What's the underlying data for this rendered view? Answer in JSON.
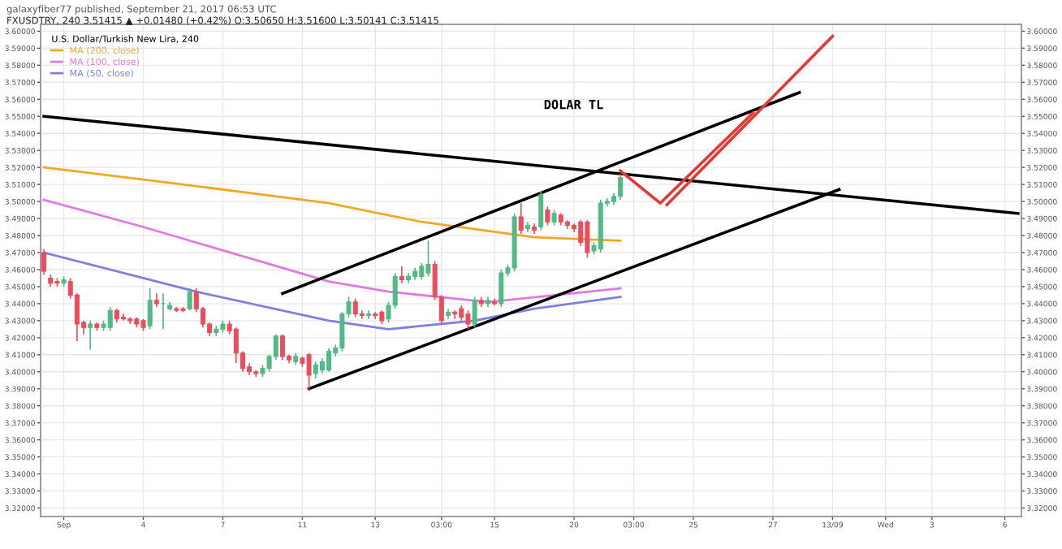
{
  "chart_data": {
    "type": "candlestick",
    "title": "galaxyfiber77 published, September 21, 2017 06:53 UTC",
    "subtitle": "FXUSDTRY, 240 3.51415 ▲ +0.01480 (+0.42%) O:3.50650 H:3.51600 L:3.50141 C:3.51415",
    "legend_title": "U.S. Dollar/Turkish New Lira, 240",
    "legend": "top left",
    "annotations": [
      "DOLAR TL"
    ],
    "colors": [
      "#eb4d5c",
      "#eb4d5c",
      "#eb4d5c",
      "#53b987",
      "#eb4d5c",
      "#eb4d5c",
      "#eb4d5c",
      "#53b987",
      "#eb4d5c",
      "#53b987",
      "#53b987",
      "#eb4d5c",
      "#eb4d5c",
      "#eb4d5c",
      "#eb4d5c",
      "#eb4d5c",
      "#53b987",
      "#eb4d5c",
      "#53b987",
      "#53b987",
      "#eb4d5c",
      "#eb4d5c",
      "#53b987",
      "#eb4d5c",
      "#eb4d5c",
      "#eb4d5c",
      "#53b987",
      "#53b987",
      "#eb4d5c",
      "#eb4d5c",
      "#eb4d5c",
      "#eb4d5c",
      "#eb4d5c",
      "#53b987",
      "#53b987",
      "#53b987",
      "#eb4d5c",
      "#eb4d5c",
      "#53b987",
      "#eb4d5c",
      "#eb4d5c",
      "#53b987",
      "#53b987",
      "#53b987",
      "#53b987",
      "#53b987",
      "#53b987",
      "#eb4d5c",
      "#eb4d5c",
      "#53b987",
      "#eb4d5c",
      "#eb4d5c",
      "#53b987",
      "#53b987",
      "#eb4d5c",
      "#53b987",
      "#53b987",
      "#53b987",
      "#53b987",
      "#eb4d5c",
      "#eb4d5c",
      "#53b987",
      "#eb4d5c",
      "#eb4d5c",
      "#eb4d5c",
      "#53b987",
      "#eb4d5c",
      "#53b987",
      "#eb4d5c",
      "#53b987",
      "#53b987",
      "#53b987",
      "#eb4d5c",
      "#53b987",
      "#eb4d5c",
      "#53b987",
      "#eb4d5c",
      "#53b987",
      "#eb4d5c",
      "#eb4d5c",
      "#eb4d5c",
      "#eb4d5c",
      "#eb4d5c",
      "#53b987",
      "#53b987",
      "#53b987",
      "#53b987",
      "#53b987",
      null,
      null,
      null,
      null,
      null,
      null,
      null,
      null,
      null,
      null,
      null,
      null,
      null,
      null,
      null,
      null,
      null,
      null,
      null,
      null,
      null,
      null,
      null,
      null,
      null,
      null,
      null,
      null,
      null,
      null,
      null,
      null,
      null,
      null,
      null,
      null,
      null,
      null,
      null,
      null,
      null,
      null,
      null,
      null,
      null,
      null,
      null,
      null,
      null,
      null,
      null,
      null,
      null,
      null,
      null,
      null,
      null,
      null,
      null,
      null
    ],
    "categories": [
      null,
      null,
      null,
      "Sep",
      null,
      null,
      null,
      null,
      null,
      null,
      null,
      null,
      null,
      null,
      null,
      "4",
      null,
      null,
      null,
      null,
      null,
      null,
      null,
      null,
      null,
      null,
      null,
      "7",
      null,
      null,
      null,
      null,
      null,
      null,
      null,
      null,
      null,
      null,
      null,
      "11",
      null,
      null,
      null,
      null,
      null,
      null,
      null,
      null,
      null,
      null,
      "13",
      null,
      null,
      null,
      null,
      null,
      null,
      null,
      null,
      null,
      "03:00",
      null,
      null,
      null,
      null,
      null,
      null,
      null,
      "15",
      null,
      null,
      null,
      null,
      null,
      null,
      null,
      null,
      null,
      null,
      null,
      "20",
      null,
      null,
      null,
      null,
      null,
      null,
      null,
      null,
      "03:00",
      null,
      null,
      null,
      null,
      null,
      null,
      null,
      null,
      "25",
      null,
      null,
      null,
      null,
      null,
      null,
      null,
      null,
      null,
      null,
      null,
      "27",
      null,
      null,
      null,
      null,
      null,
      null,
      null,
      null,
      "13/09",
      null,
      null,
      null,
      null,
      null,
      null,
      null,
      "Wed",
      null,
      null,
      null,
      null,
      null,
      null,
      "3",
      null,
      null,
      null,
      null,
      null,
      null,
      null,
      null,
      null,
      null,
      "6",
      null,
      null
    ],
    "ohlc": [
      [
        3.47,
        3.472,
        3.457,
        3.459
      ],
      [
        3.455,
        3.457,
        3.45,
        3.452
      ],
      [
        3.453,
        3.455,
        3.45,
        3.452
      ],
      [
        3.452,
        3.456,
        3.45,
        3.454
      ],
      [
        3.453,
        3.455,
        3.443,
        3.445
      ],
      [
        3.445,
        3.446,
        3.418,
        3.428
      ],
      [
        3.429,
        3.43,
        3.422,
        3.426
      ],
      [
        3.426,
        3.43,
        3.413,
        3.428
      ],
      [
        3.428,
        3.429,
        3.424,
        3.426
      ],
      [
        3.426,
        3.43,
        3.424,
        3.428
      ],
      [
        3.426,
        3.438,
        3.424,
        3.436
      ],
      [
        3.436,
        3.437,
        3.429,
        3.431
      ],
      [
        3.432,
        3.434,
        3.43,
        3.431
      ],
      [
        3.431,
        3.432,
        3.428,
        3.43
      ],
      [
        3.431,
        3.432,
        3.426,
        3.428
      ],
      [
        3.43,
        3.431,
        3.424,
        3.426
      ],
      [
        3.427,
        3.449,
        3.425,
        3.442
      ],
      [
        3.442,
        3.446,
        3.438,
        3.44
      ],
      [
        3.44,
        3.446,
        3.425,
        3.44
      ],
      [
        3.437,
        3.441,
        3.436,
        3.439
      ],
      [
        3.437,
        3.438,
        3.435,
        3.436
      ],
      [
        3.437,
        3.438,
        3.435,
        3.436
      ],
      [
        3.437,
        3.449,
        3.436,
        3.447
      ],
      [
        3.447,
        3.449,
        3.435,
        3.437
      ],
      [
        3.437,
        3.438,
        3.426,
        3.428
      ],
      [
        3.428,
        3.429,
        3.421,
        3.423
      ],
      [
        3.423,
        3.427,
        3.421,
        3.425
      ],
      [
        3.425,
        3.43,
        3.423,
        3.428
      ],
      [
        3.428,
        3.43,
        3.422,
        3.424
      ],
      [
        3.425,
        3.426,
        3.405,
        3.411
      ],
      [
        3.411,
        3.412,
        3.4,
        3.402
      ],
      [
        3.403,
        3.405,
        3.398,
        3.4
      ],
      [
        3.4,
        3.401,
        3.397,
        3.399
      ],
      [
        3.399,
        3.404,
        3.397,
        3.402
      ],
      [
        3.402,
        3.41,
        3.4,
        3.409
      ],
      [
        3.409,
        3.422,
        3.407,
        3.421
      ],
      [
        3.421,
        3.422,
        3.407,
        3.409
      ],
      [
        3.409,
        3.41,
        3.405,
        3.407
      ],
      [
        3.406,
        3.411,
        3.404,
        3.409
      ],
      [
        3.408,
        3.409,
        3.403,
        3.405
      ],
      [
        3.41,
        3.411,
        3.389,
        3.398
      ],
      [
        3.399,
        3.406,
        3.396,
        3.404
      ],
      [
        3.401,
        3.408,
        3.399,
        3.406
      ],
      [
        3.401,
        3.414,
        3.4,
        3.412
      ],
      [
        3.411,
        3.416,
        3.409,
        3.414
      ],
      [
        3.414,
        3.435,
        3.412,
        3.434
      ],
      [
        3.434,
        3.444,
        3.432,
        3.441
      ],
      [
        3.441,
        3.443,
        3.432,
        3.434
      ],
      [
        3.434,
        3.436,
        3.431,
        3.433
      ],
      [
        3.433,
        3.436,
        3.431,
        3.434
      ],
      [
        3.434,
        3.435,
        3.431,
        3.433
      ],
      [
        3.435,
        3.436,
        3.428,
        3.43
      ],
      [
        3.431,
        3.441,
        3.429,
        3.439
      ],
      [
        3.439,
        3.458,
        3.437,
        3.456
      ],
      [
        3.456,
        3.462,
        3.452,
        3.454
      ],
      [
        3.454,
        3.458,
        3.452,
        3.456
      ],
      [
        3.456,
        3.461,
        3.454,
        3.459
      ],
      [
        3.456,
        3.464,
        3.454,
        3.462
      ],
      [
        3.458,
        3.477,
        3.456,
        3.463
      ],
      [
        3.463,
        3.465,
        3.442,
        3.444
      ],
      [
        3.444,
        3.445,
        3.428,
        3.43
      ],
      [
        3.433,
        3.437,
        3.431,
        3.435
      ],
      [
        3.435,
        3.436,
        3.431,
        3.434
      ],
      [
        3.437,
        3.439,
        3.43,
        3.432
      ],
      [
        3.434,
        3.436,
        3.425,
        3.428
      ],
      [
        3.428,
        3.444,
        3.426,
        3.442
      ],
      [
        3.442,
        3.444,
        3.438,
        3.44
      ],
      [
        3.44,
        3.444,
        3.438,
        3.442
      ],
      [
        3.441,
        3.443,
        3.439,
        3.44
      ],
      [
        3.44,
        3.46,
        3.438,
        3.458
      ],
      [
        3.458,
        3.463,
        3.456,
        3.461
      ],
      [
        3.461,
        3.493,
        3.459,
        3.491
      ],
      [
        3.491,
        3.499,
        3.481,
        3.483
      ],
      [
        3.484,
        3.488,
        3.482,
        3.486
      ],
      [
        3.485,
        3.487,
        3.481,
        3.483
      ],
      [
        3.485,
        3.506,
        3.483,
        3.504
      ],
      [
        3.495,
        3.497,
        3.486,
        3.488
      ],
      [
        3.488,
        3.495,
        3.486,
        3.493
      ],
      [
        3.492,
        3.493,
        3.486,
        3.488
      ],
      [
        3.488,
        3.489,
        3.484,
        3.486
      ],
      [
        3.486,
        3.487,
        3.482,
        3.484
      ],
      [
        3.488,
        3.489,
        3.474,
        3.476
      ],
      [
        3.488,
        3.489,
        3.467,
        3.47
      ],
      [
        3.471,
        3.476,
        3.469,
        3.474
      ],
      [
        3.472,
        3.501,
        3.47,
        3.499
      ],
      [
        3.499,
        3.502,
        3.497,
        3.5
      ],
      [
        3.5,
        3.505,
        3.498,
        3.503
      ],
      [
        3.503,
        3.516,
        3.501,
        3.514
      ],
      null,
      null,
      null,
      null,
      null,
      null,
      null,
      null,
      null,
      null,
      null,
      null,
      null,
      null,
      null,
      null,
      null,
      null,
      null,
      null,
      null,
      null,
      null,
      null,
      null,
      null,
      null,
      null,
      null,
      null,
      null,
      null,
      null,
      null,
      null,
      null,
      null,
      null,
      null,
      null,
      null,
      null,
      null,
      null,
      null,
      null,
      null,
      null,
      null,
      null,
      null,
      null,
      null,
      null,
      null,
      null,
      null,
      null,
      null,
      null
    ],
    "series": [
      {
        "type": "line",
        "name": "MA (200, close)",
        "color": "#f5a623",
        "values": [
          3.52,
          null,
          null,
          null,
          null,
          null,
          null,
          null,
          null,
          null,
          null,
          null,
          null,
          null,
          null,
          null,
          null,
          null,
          null,
          3.511,
          null,
          null,
          null,
          null,
          null,
          null,
          null,
          null,
          null,
          null,
          null,
          null,
          null,
          null,
          null,
          null,
          null,
          null,
          null,
          null,
          null,
          null,
          null,
          3.499,
          null,
          null,
          null,
          null,
          null,
          null,
          null,
          null,
          null,
          null,
          null,
          null,
          null,
          3.488,
          null,
          null,
          null,
          null,
          null,
          null,
          null,
          null,
          null,
          null,
          null,
          null,
          null,
          null,
          null,
          null,
          3.479,
          null,
          null,
          null,
          null,
          null,
          null,
          null,
          null,
          null,
          null,
          null,
          null,
          3.477,
          null,
          null,
          null,
          null,
          null,
          null,
          null,
          null,
          null,
          null,
          null,
          null,
          null,
          null,
          null,
          null,
          null,
          null,
          null,
          null,
          null,
          null,
          null,
          null,
          null,
          null,
          null,
          null,
          null,
          null,
          null,
          null,
          null,
          null,
          null,
          null,
          null,
          null,
          null,
          null,
          null,
          null,
          null,
          null,
          null,
          null,
          null,
          null,
          null,
          null,
          null,
          null,
          null,
          null,
          null,
          null,
          null,
          null,
          null,
          null
        ]
      },
      {
        "type": "line",
        "name": "MA (100, close)",
        "color": "#e07ae0",
        "values": [
          3.501,
          null,
          null,
          null,
          null,
          null,
          null,
          null,
          null,
          null,
          null,
          null,
          null,
          null,
          null,
          3.485,
          null,
          null,
          null,
          null,
          null,
          null,
          null,
          null,
          null,
          null,
          null,
          null,
          null,
          null,
          null,
          null,
          null,
          null,
          null,
          null,
          null,
          null,
          null,
          null,
          null,
          null,
          null,
          3.453,
          null,
          null,
          null,
          null,
          null,
          null,
          null,
          null,
          3.447,
          null,
          null,
          null,
          null,
          null,
          null,
          null,
          null,
          null,
          null,
          null,
          null,
          null,
          null,
          3.441,
          null,
          null,
          null,
          null,
          null,
          null,
          null,
          null,
          null,
          null,
          null,
          null,
          null,
          null,
          null,
          null,
          null,
          null,
          null,
          3.449,
          null,
          null,
          null,
          null,
          null,
          null,
          null,
          null,
          null,
          null,
          null,
          null,
          null,
          null,
          null,
          null,
          null,
          null,
          null,
          null,
          null,
          null,
          null,
          null,
          null,
          null,
          null,
          null,
          null,
          null,
          null,
          null,
          null,
          null,
          null,
          null,
          null,
          null,
          null,
          null,
          null,
          null,
          null,
          null,
          null,
          null,
          null,
          null,
          null,
          null,
          null,
          null,
          null,
          null,
          null,
          null,
          null,
          null,
          null,
          null
        ]
      },
      {
        "type": "line",
        "name": "MA (50, close)",
        "color": "#7f7fe0",
        "values": [
          3.47,
          null,
          null,
          null,
          null,
          null,
          null,
          null,
          null,
          null,
          null,
          null,
          null,
          null,
          null,
          null,
          null,
          null,
          null,
          null,
          null,
          null,
          null,
          3.447,
          null,
          null,
          null,
          null,
          null,
          null,
          null,
          null,
          null,
          null,
          null,
          null,
          null,
          null,
          null,
          null,
          null,
          null,
          null,
          3.43,
          null,
          null,
          null,
          null,
          null,
          null,
          null,
          null,
          3.425,
          null,
          null,
          null,
          null,
          null,
          null,
          null,
          null,
          null,
          null,
          null,
          null,
          3.43,
          null,
          null,
          null,
          null,
          null,
          null,
          null,
          null,
          3.437,
          null,
          null,
          null,
          null,
          null,
          null,
          null,
          null,
          null,
          null,
          null,
          null,
          3.444,
          null,
          null,
          null,
          null,
          null,
          null,
          null,
          null,
          null,
          null,
          null,
          null,
          null,
          null,
          null,
          null,
          null,
          null,
          null,
          null,
          null,
          null,
          null,
          null,
          null,
          null,
          null,
          null,
          null,
          null,
          null,
          null,
          null,
          null,
          null,
          null,
          null,
          null,
          null,
          null,
          null,
          null,
          null,
          null,
          null,
          null,
          null,
          null,
          null,
          null,
          null,
          null,
          null,
          null,
          null,
          null,
          null,
          null,
          null,
          null
        ]
      },
      {
        "type": "line",
        "color": "#000000",
        "values": [
          3.55,
          null,
          null,
          null,
          null,
          null,
          null,
          null,
          null,
          null,
          null,
          null,
          null,
          null,
          null,
          null,
          null,
          null,
          null,
          null,
          null,
          null,
          null,
          null,
          null,
          null,
          null,
          null,
          null,
          null,
          null,
          null,
          null,
          null,
          null,
          null,
          null,
          null,
          null,
          null,
          null,
          null,
          null,
          null,
          null,
          null,
          null,
          null,
          null,
          null,
          null,
          null,
          null,
          null,
          null,
          null,
          null,
          null,
          null,
          null,
          null,
          null,
          null,
          null,
          null,
          null,
          null,
          null,
          null,
          null,
          null,
          null,
          null,
          null,
          null,
          null,
          null,
          null,
          null,
          null,
          null,
          null,
          null,
          null,
          null,
          null,
          null,
          null,
          null,
          null,
          null,
          null,
          null,
          null,
          null,
          null,
          null,
          null,
          null,
          null,
          null,
          null,
          null,
          null,
          null,
          null,
          null,
          null,
          null,
          null,
          null,
          null,
          null,
          null,
          null,
          null,
          null,
          null,
          null,
          null,
          null,
          null,
          null,
          null,
          null,
          null,
          null,
          null,
          null,
          null,
          null,
          null,
          null,
          null,
          null,
          null,
          null,
          null,
          null,
          null,
          null,
          null,
          null,
          null,
          null,
          null,
          null,
          3.493
        ]
      },
      {
        "type": "line",
        "color": "#000000",
        "values": [
          null,
          null,
          null,
          null,
          null,
          null,
          null,
          null,
          null,
          null,
          null,
          null,
          null,
          null,
          null,
          null,
          null,
          null,
          null,
          null,
          null,
          null,
          null,
          null,
          null,
          null,
          null,
          null,
          null,
          null,
          null,
          null,
          null,
          null,
          null,
          null,
          3.446,
          null,
          null,
          null,
          null,
          null,
          null,
          null,
          null,
          null,
          null,
          null,
          null,
          null,
          null,
          null,
          null,
          null,
          null,
          null,
          null,
          null,
          null,
          null,
          null,
          null,
          null,
          null,
          null,
          null,
          null,
          null,
          null,
          null,
          null,
          null,
          null,
          null,
          null,
          null,
          null,
          null,
          null,
          null,
          null,
          null,
          null,
          null,
          null,
          null,
          null,
          null,
          null,
          null,
          null,
          null,
          null,
          null,
          null,
          null,
          null,
          null,
          null,
          null,
          null,
          null,
          null,
          null,
          null,
          null,
          null,
          null,
          null,
          null,
          null,
          null,
          null,
          null,
          3.564,
          null,
          null,
          null,
          null,
          null,
          null,
          null,
          null,
          null,
          null,
          null,
          null,
          null,
          null,
          null,
          null,
          null,
          null,
          null,
          null,
          null,
          null,
          null,
          null,
          null,
          null,
          null,
          null,
          null,
          null,
          null,
          null,
          null
        ]
      },
      {
        "type": "line",
        "color": "#000000",
        "values": [
          null,
          null,
          null,
          null,
          null,
          null,
          null,
          null,
          null,
          null,
          null,
          null,
          null,
          null,
          null,
          null,
          null,
          null,
          null,
          null,
          null,
          null,
          null,
          null,
          null,
          null,
          null,
          null,
          null,
          null,
          null,
          null,
          null,
          null,
          null,
          null,
          null,
          null,
          null,
          null,
          3.39,
          null,
          null,
          null,
          null,
          null,
          null,
          null,
          null,
          null,
          null,
          null,
          null,
          null,
          null,
          null,
          null,
          null,
          null,
          null,
          null,
          null,
          null,
          null,
          null,
          null,
          null,
          null,
          null,
          null,
          null,
          null,
          null,
          null,
          null,
          null,
          null,
          null,
          null,
          null,
          null,
          null,
          null,
          null,
          null,
          null,
          null,
          null,
          null,
          null,
          null,
          null,
          null,
          null,
          null,
          null,
          null,
          null,
          null,
          null,
          null,
          null,
          null,
          null,
          null,
          null,
          null,
          null,
          null,
          null,
          null,
          null,
          null,
          null,
          null,
          null,
          null,
          null,
          null,
          null,
          3.507,
          null,
          null,
          null,
          null,
          null,
          null,
          null,
          null,
          null,
          null,
          null,
          null,
          null,
          null,
          null,
          null,
          null,
          null,
          null,
          null,
          null,
          null,
          null,
          null,
          null,
          null,
          null
        ]
      },
      {
        "type": "line",
        "color": "#e53935",
        "values": [
          null,
          null,
          null,
          null,
          null,
          null,
          null,
          null,
          null,
          null,
          null,
          null,
          null,
          null,
          null,
          null,
          null,
          null,
          null,
          null,
          null,
          null,
          null,
          null,
          null,
          null,
          null,
          null,
          null,
          null,
          null,
          null,
          null,
          null,
          null,
          null,
          null,
          null,
          null,
          null,
          null,
          null,
          null,
          null,
          null,
          null,
          null,
          null,
          null,
          null,
          null,
          null,
          null,
          null,
          null,
          null,
          null,
          null,
          null,
          null,
          null,
          null,
          null,
          null,
          null,
          null,
          null,
          null,
          null,
          null,
          null,
          null,
          null,
          null,
          null,
          null,
          null,
          null,
          null,
          null,
          null,
          null,
          null,
          null,
          null,
          null,
          null,
          3.518,
          null,
          null,
          null,
          null,
          null,
          3.499,
          null,
          null,
          null,
          null,
          null,
          null,
          null,
          null,
          null,
          null,
          null,
          null,
          null,
          3.552,
          null,
          null,
          null,
          null,
          null,
          null,
          null,
          null,
          null,
          null,
          null,
          null,
          null,
          null,
          null,
          null,
          null,
          null,
          null,
          null,
          null,
          null,
          null,
          null,
          null,
          null,
          null,
          null,
          null,
          null,
          null,
          null,
          null,
          null,
          null,
          null,
          null,
          null,
          null,
          null
        ]
      },
      {
        "type": "line",
        "color": "#e53935",
        "values": [
          null,
          null,
          null,
          null,
          null,
          null,
          null,
          null,
          null,
          null,
          null,
          null,
          null,
          null,
          null,
          null,
          null,
          null,
          null,
          null,
          null,
          null,
          null,
          null,
          null,
          null,
          null,
          null,
          null,
          null,
          null,
          null,
          null,
          null,
          null,
          null,
          null,
          null,
          null,
          null,
          null,
          null,
          null,
          null,
          null,
          null,
          null,
          null,
          null,
          null,
          null,
          null,
          null,
          null,
          null,
          null,
          null,
          null,
          null,
          null,
          null,
          null,
          null,
          null,
          null,
          null,
          null,
          null,
          null,
          null,
          null,
          null,
          null,
          null,
          null,
          null,
          null,
          null,
          null,
          null,
          null,
          null,
          null,
          null,
          null,
          null,
          null,
          null,
          null,
          null,
          null,
          null,
          null,
          null,
          3.498,
          null,
          null,
          null,
          null,
          null,
          null,
          null,
          null,
          null,
          null,
          null,
          null,
          null,
          null,
          null,
          null,
          null,
          null,
          null,
          null,
          null,
          null,
          null,
          null,
          3.597,
          null,
          null,
          null,
          null,
          null,
          null,
          null,
          null,
          null,
          null,
          null,
          null,
          null,
          null,
          null,
          null,
          null,
          null,
          null,
          null,
          null,
          null,
          null,
          null,
          null,
          null,
          null,
          null
        ]
      }
    ],
    "ylim": [
      3.315,
      3.604
    ],
    "yticks": [
      {
        "value": 3.32,
        "label": "3.32000"
      },
      {
        "value": 3.33,
        "label": "3.33000"
      },
      {
        "value": 3.34,
        "label": "3.34000"
      },
      {
        "value": 3.35,
        "label": "3.35000"
      },
      {
        "value": 3.36,
        "label": "3.36000"
      },
      {
        "value": 3.37,
        "label": "3.37000"
      },
      {
        "value": 3.38,
        "label": "3.38000"
      },
      {
        "value": 3.39,
        "label": "3.39000"
      },
      {
        "value": 3.4,
        "label": "3.40000"
      },
      {
        "value": 3.41,
        "label": "3.41000"
      },
      {
        "value": 3.42,
        "label": "3.42000"
      },
      {
        "value": 3.43,
        "label": "3.43000"
      },
      {
        "value": 3.44,
        "label": "3.44000"
      },
      {
        "value": 3.45,
        "label": "3.45000"
      },
      {
        "value": 3.46,
        "label": "3.46000"
      },
      {
        "value": 3.47,
        "label": "3.47000"
      },
      {
        "value": 3.48,
        "label": "3.48000"
      },
      {
        "value": 3.49,
        "label": "3.49000"
      },
      {
        "value": 3.5,
        "label": "3.50000"
      },
      {
        "value": 3.51,
        "label": "3.51000"
      },
      {
        "value": 3.52,
        "label": "3.52000"
      },
      {
        "value": 3.53,
        "label": "3.53000"
      },
      {
        "value": 3.54,
        "label": "3.54000"
      },
      {
        "value": 3.55,
        "label": "3.55000"
      },
      {
        "value": 3.56,
        "label": "3.56000"
      },
      {
        "value": 3.57,
        "label": "3.57000"
      },
      {
        "value": 3.58,
        "label": "3.58000"
      },
      {
        "value": 3.59,
        "label": "3.59000"
      },
      {
        "value": 3.6,
        "label": "3.60000"
      }
    ],
    "y2lim": [
      3.315,
      3.604
    ],
    "y2ticks": [
      {
        "value": 3.32,
        "label": "3.32000"
      },
      {
        "value": 3.33,
        "label": "3.33000"
      },
      {
        "value": 3.34,
        "label": "3.34000"
      },
      {
        "value": 3.35,
        "label": "3.35000"
      },
      {
        "value": 3.36,
        "label": "3.36000"
      },
      {
        "value": 3.37,
        "label": "3.37000"
      },
      {
        "value": 3.38,
        "label": "3.38000"
      },
      {
        "value": 3.39,
        "label": "3.39000"
      },
      {
        "value": 3.4,
        "label": "3.40000"
      },
      {
        "value": 3.41,
        "label": "3.41000"
      },
      {
        "value": 3.42,
        "label": "3.42000"
      },
      {
        "value": 3.43,
        "label": "3.43000"
      },
      {
        "value": 3.44,
        "label": "3.44000"
      },
      {
        "value": 3.45,
        "label": "3.45000"
      },
      {
        "value": 3.46,
        "label": "3.46000"
      },
      {
        "value": 3.47,
        "label": "3.47000"
      },
      {
        "value": 3.48,
        "label": "3.48000"
      },
      {
        "value": 3.49,
        "label": "3.49000"
      },
      {
        "value": 3.5,
        "label": "3.50000"
      },
      {
        "value": 3.51,
        "label": "3.51000"
      },
      {
        "value": 3.52,
        "label": "3.52000"
      },
      {
        "value": 3.53,
        "label": "3.53000"
      },
      {
        "value": 3.54,
        "label": "3.54000"
      },
      {
        "value": 3.55,
        "label": "3.55000"
      },
      {
        "value": 3.56,
        "label": "3.56000"
      },
      {
        "value": 3.57,
        "label": "3.57000"
      },
      {
        "value": 3.58,
        "label": "3.58000"
      },
      {
        "value": 3.59,
        "label": "3.59000"
      },
      {
        "value": 3.6,
        "label": "3.60000"
      }
    ],
    "grid": true,
    "marker": "none",
    "line_style": "solid"
  }
}
